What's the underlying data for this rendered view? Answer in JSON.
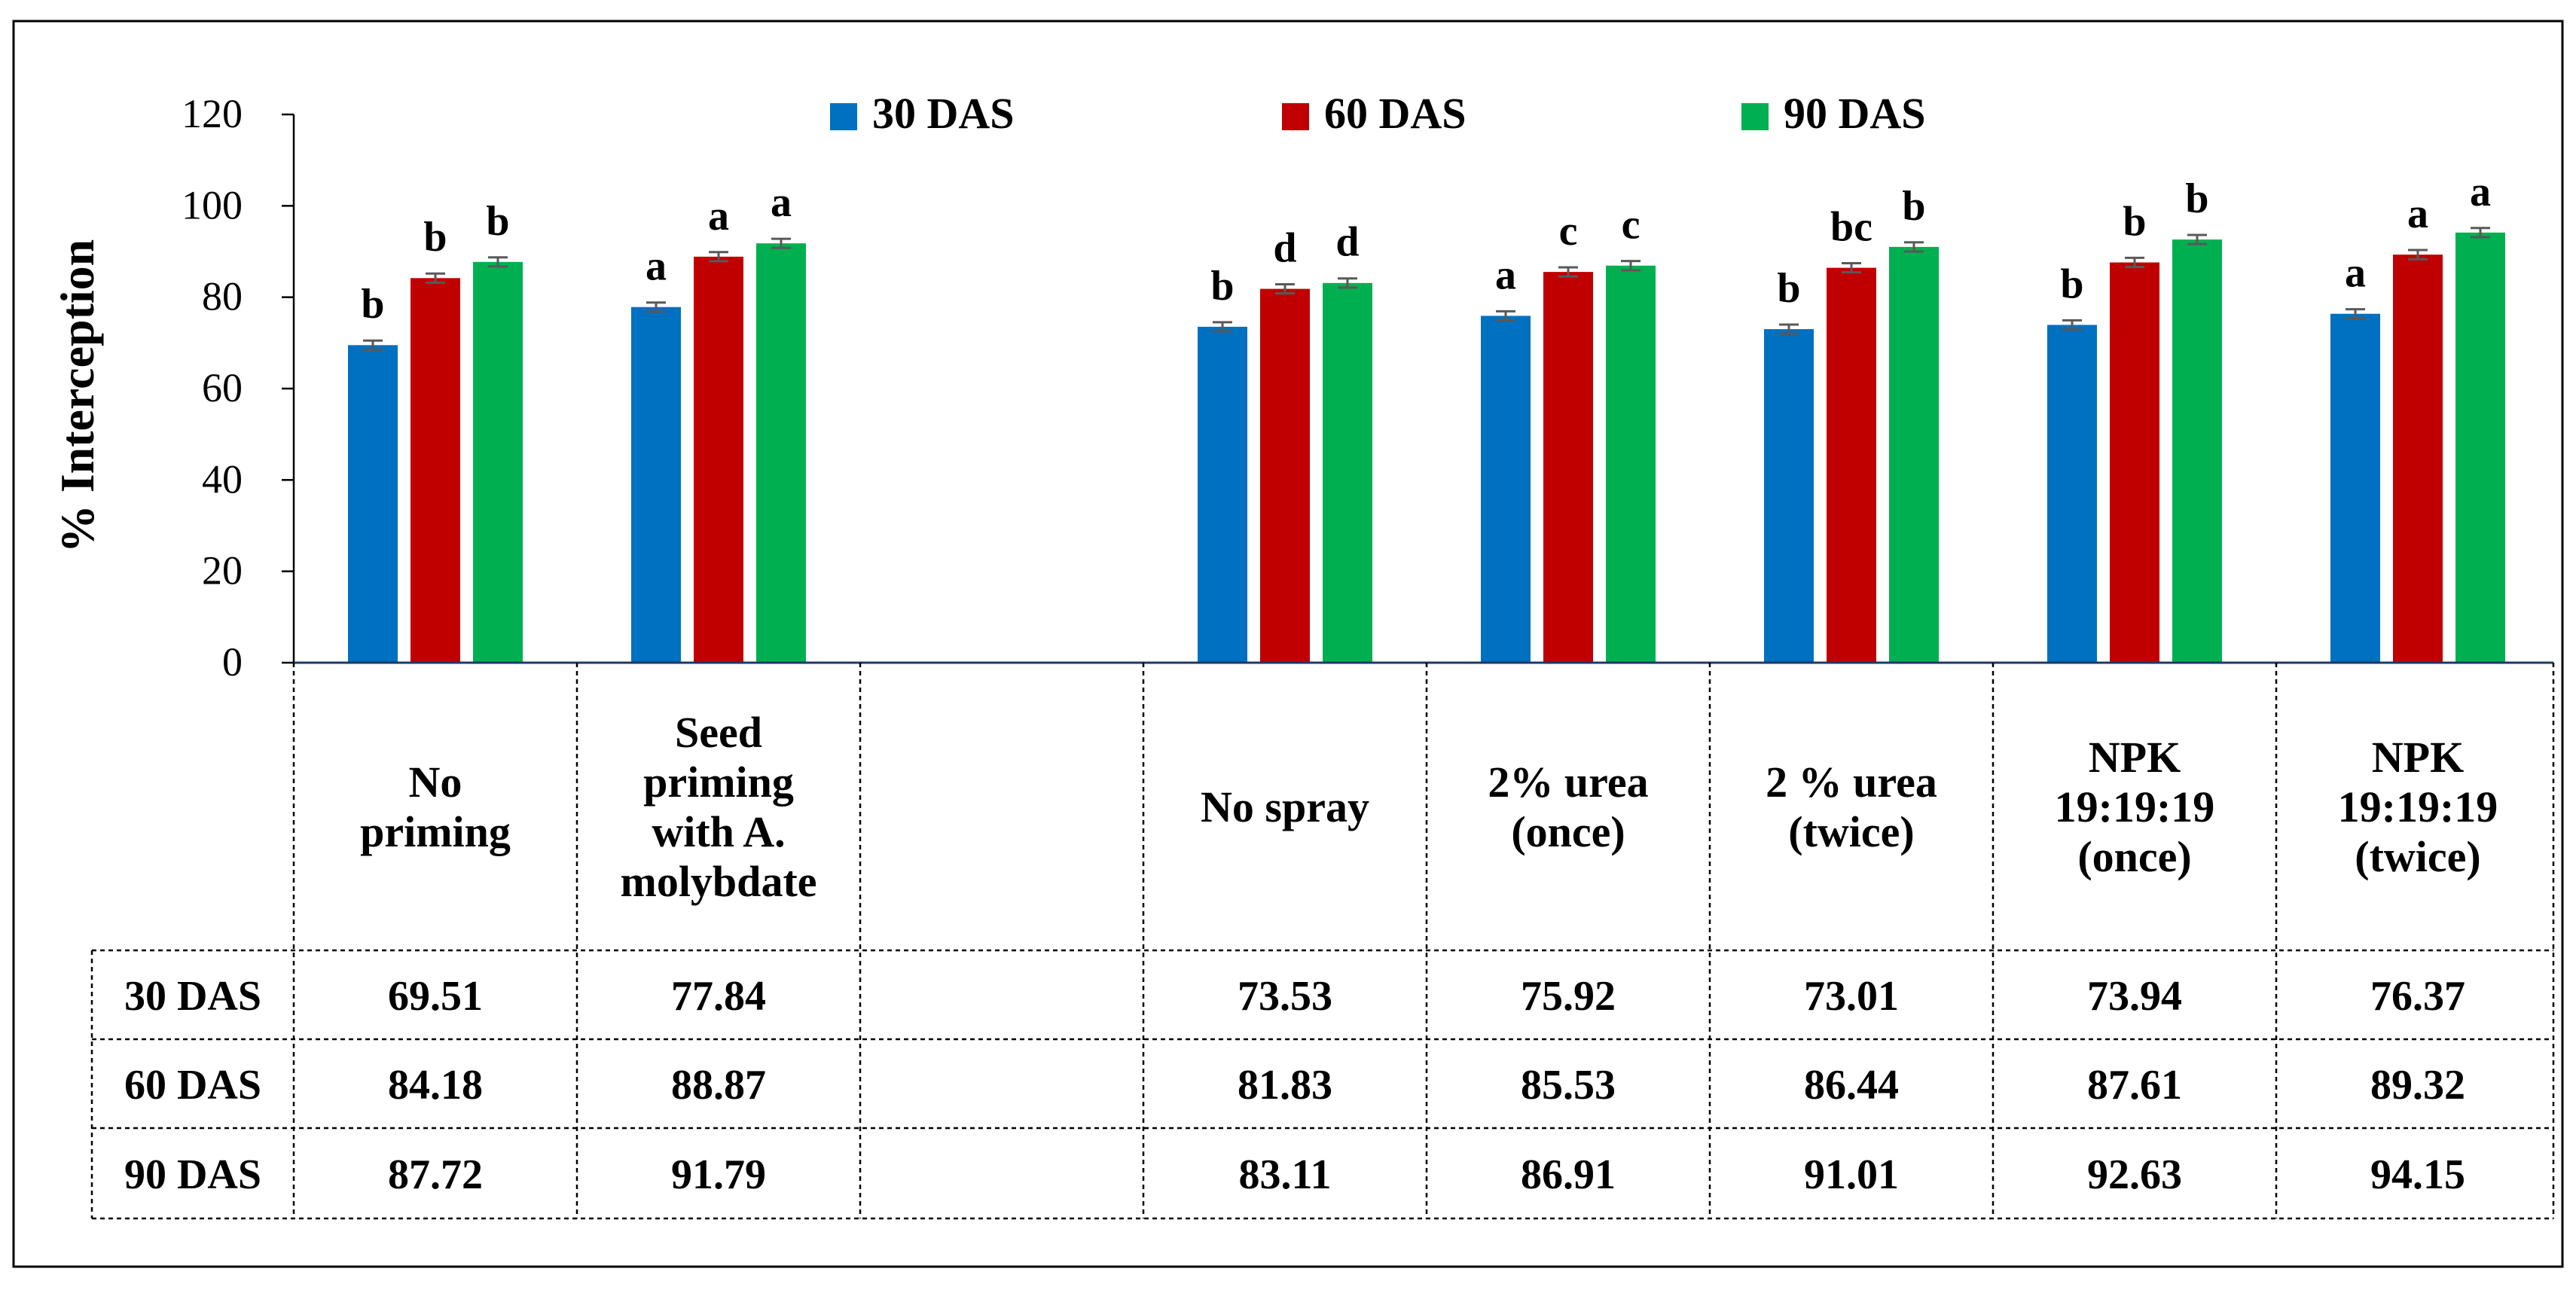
{
  "chart_data": {
    "type": "bar",
    "ylabel": "% Interception",
    "ylim": [
      0,
      120
    ],
    "yticks": [
      0,
      20,
      40,
      60,
      80,
      100,
      120
    ],
    "grid": false,
    "legend_position": "top-center",
    "categories": [
      {
        "lines": [
          "No",
          "priming"
        ],
        "has_data": true
      },
      {
        "lines": [
          "Seed",
          "priming",
          "with A.",
          "molybdate"
        ],
        "has_data": true
      },
      {
        "lines": [],
        "has_data": false
      },
      {
        "lines": [
          "No spray"
        ],
        "has_data": true
      },
      {
        "lines": [
          "2% urea",
          "(once)"
        ],
        "has_data": true
      },
      {
        "lines": [
          "2 % urea",
          "(twice)"
        ],
        "has_data": true
      },
      {
        "lines": [
          "NPK",
          "19:19:19",
          "(once)"
        ],
        "has_data": true
      },
      {
        "lines": [
          "NPK",
          "19:19:19",
          "(twice)"
        ],
        "has_data": true
      }
    ],
    "series": [
      {
        "name": "30 DAS",
        "color": "#0070C0",
        "values": [
          69.51,
          77.84,
          null,
          73.53,
          75.92,
          73.01,
          73.94,
          76.37
        ],
        "value_labels": [
          "69.51",
          "77.84",
          "",
          "73.53",
          "75.92",
          "73.01",
          "73.94",
          "76.37"
        ],
        "letters": [
          "b",
          "a",
          "",
          "b",
          "a",
          "b",
          "b",
          "a"
        ]
      },
      {
        "name": "60 DAS",
        "color": "#C00000",
        "values": [
          84.18,
          88.87,
          null,
          81.83,
          85.53,
          86.44,
          87.61,
          89.32
        ],
        "value_labels": [
          "84.18",
          "88.87",
          "",
          "81.83",
          "85.53",
          "86.44",
          "87.61",
          "89.32"
        ],
        "letters": [
          "b",
          "a",
          "",
          "d",
          "c",
          "bc",
          "b",
          "a"
        ]
      },
      {
        "name": "90 DAS",
        "color": "#00B050",
        "values": [
          87.72,
          91.79,
          null,
          83.11,
          86.91,
          91.01,
          92.63,
          94.15
        ],
        "value_labels": [
          "87.72",
          "91.79",
          "",
          "83.11",
          "86.91",
          "91.01",
          "92.63",
          "94.15"
        ],
        "letters": [
          "b",
          "a",
          "",
          "d",
          "c",
          "b",
          "b",
          "a"
        ]
      }
    ],
    "error_bar_halfwidth": 1.0
  }
}
